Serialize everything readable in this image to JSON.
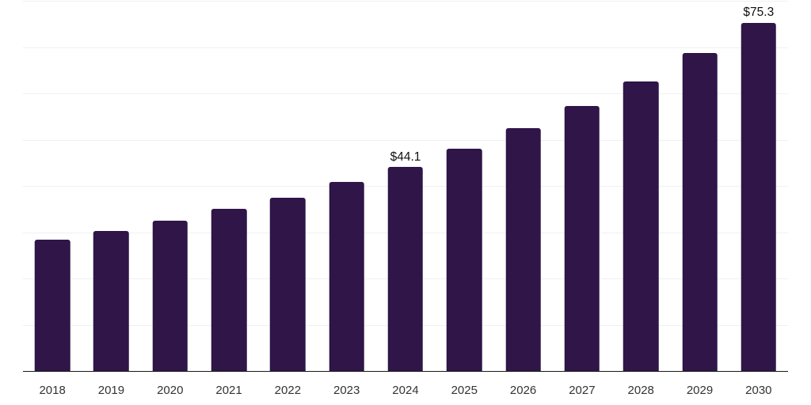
{
  "chart_data": {
    "type": "bar",
    "categories": [
      "2018",
      "2019",
      "2020",
      "2021",
      "2022",
      "2023",
      "2024",
      "2025",
      "2026",
      "2027",
      "2028",
      "2029",
      "2030"
    ],
    "values": [
      28.3,
      30.3,
      32.4,
      35.0,
      37.4,
      40.8,
      44.1,
      48.0,
      52.5,
      57.3,
      62.6,
      68.8,
      75.3
    ],
    "data_labels": [
      {
        "category": "2024",
        "text": "$44.1"
      },
      {
        "category": "2030",
        "text": "$75.3"
      }
    ],
    "title": "",
    "xlabel": "",
    "ylabel": "",
    "ylim": [
      0,
      80
    ],
    "gridline_step": 10,
    "grid": "horizontal",
    "legend": "none",
    "colors": {
      "bar": "#2F1548",
      "gridline": "#F0F0F0",
      "axis_line": "#1A1A1A",
      "data_label": "#111111",
      "tick_label": "#333333",
      "background": "#FFFFFF"
    }
  }
}
